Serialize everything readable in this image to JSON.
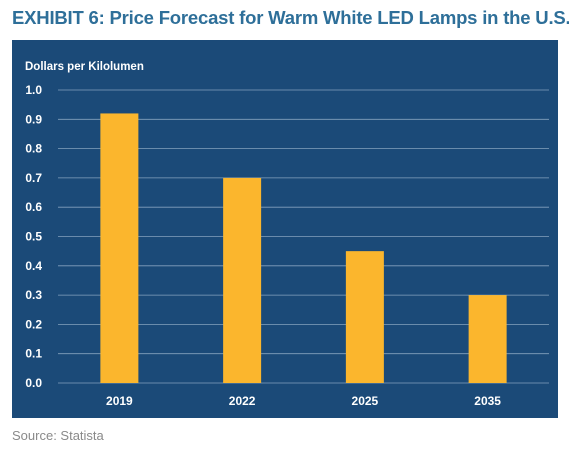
{
  "exhibit_title": "EXHIBIT 6: Price Forecast for Warm White LED Lamps in the U.S.",
  "source": "Source: Statista",
  "colors": {
    "title": "#2e6f99",
    "panel_bg": "#1b4a78",
    "bar": "#fbb62d",
    "text_on_panel": "#ffffff",
    "source_text": "#8a8a8a"
  },
  "chart_data": {
    "type": "bar",
    "title": "",
    "xlabel": "",
    "ylabel": "Dollars per Kilolumen",
    "categories": [
      "2019",
      "2022",
      "2025",
      "2035"
    ],
    "values": [
      0.92,
      0.7,
      0.45,
      0.3
    ],
    "ylim": [
      0,
      1.0
    ],
    "yticks": [
      "0.0",
      "0.1",
      "0.2",
      "0.3",
      "0.4",
      "0.5",
      "0.6",
      "0.7",
      "0.8",
      "0.9",
      "1.0"
    ],
    "grid": true,
    "legend": "none"
  }
}
